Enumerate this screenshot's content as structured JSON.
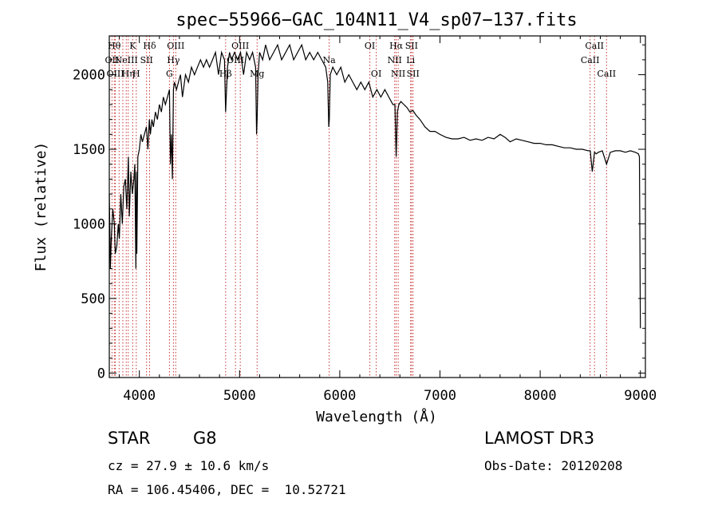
{
  "chart_data": {
    "type": "line",
    "title": "spec−55966−GAC_104N11_V4_sp07−137.fits",
    "xlabel": "Wavelength (Å)",
    "ylabel": "Flux (relative)",
    "xlim": [
      3700,
      9050
    ],
    "ylim": [
      -30,
      2260
    ],
    "xticks": [
      4000,
      5000,
      6000,
      7000,
      8000,
      9000
    ],
    "yticks": [
      0,
      500,
      1000,
      1500,
      2000
    ],
    "grid": false,
    "series": [
      {
        "name": "spectrum",
        "x": [
          3700,
          3705,
          3710,
          3720,
          3735,
          3750,
          3760,
          3775,
          3790,
          3800,
          3815,
          3830,
          3845,
          3860,
          3875,
          3890,
          3900,
          3915,
          3930,
          3945,
          3955,
          3965,
          3970,
          3975,
          3985,
          4000,
          4015,
          4030,
          4050,
          4070,
          4085,
          4100,
          4110,
          4125,
          4140,
          4160,
          4180,
          4200,
          4220,
          4240,
          4260,
          4280,
          4300,
          4310,
          4320,
          4330,
          4340,
          4350,
          4370,
          4390,
          4410,
          4430,
          4460,
          4490,
          4520,
          4550,
          4580,
          4610,
          4640,
          4670,
          4700,
          4730,
          4760,
          4790,
          4820,
          4850,
          4861,
          4880,
          4900,
          4920,
          4950,
          4980,
          5010,
          5040,
          5070,
          5100,
          5130,
          5160,
          5170,
          5175,
          5185,
          5200,
          5230,
          5260,
          5300,
          5340,
          5380,
          5420,
          5460,
          5500,
          5540,
          5580,
          5620,
          5660,
          5700,
          5740,
          5780,
          5820,
          5860,
          5880,
          5890,
          5896,
          5905,
          5930,
          5970,
          6010,
          6050,
          6090,
          6130,
          6170,
          6210,
          6250,
          6290,
          6330,
          6370,
          6410,
          6450,
          6490,
          6530,
          6550,
          6563,
          6575,
          6590,
          6610,
          6640,
          6670,
          6700,
          6730,
          6760,
          6800,
          6850,
          6900,
          6950,
          7000,
          7060,
          7120,
          7180,
          7240,
          7300,
          7360,
          7420,
          7480,
          7540,
          7600,
          7650,
          7700,
          7760,
          7820,
          7880,
          7940,
          8000,
          8060,
          8120,
          8180,
          8240,
          8300,
          8360,
          8420,
          8480,
          8500,
          8520,
          8542,
          8560,
          8580,
          8620,
          8662,
          8700,
          8750,
          8800,
          8850,
          8900,
          8950,
          8980,
          8990,
          9000
        ],
        "y": [
          1200,
          1000,
          700,
          900,
          1100,
          1000,
          800,
          850,
          1000,
          900,
          1200,
          1000,
          1250,
          1300,
          1100,
          1450,
          1050,
          1350,
          1200,
          1300,
          1400,
          700,
          1350,
          800,
          1450,
          1500,
          1600,
          1550,
          1600,
          1650,
          1500,
          1700,
          1600,
          1700,
          1650,
          1750,
          1700,
          1800,
          1750,
          1850,
          1800,
          1850,
          1900,
          1400,
          1600,
          1300,
          1900,
          1950,
          1900,
          1950,
          2000,
          1850,
          2000,
          1950,
          2050,
          2000,
          2050,
          2100,
          2050,
          2100,
          2050,
          2100,
          2150,
          2000,
          2150,
          2100,
          1750,
          2050,
          2150,
          2100,
          2150,
          2100,
          2150,
          2000,
          2150,
          2100,
          2150,
          2050,
          1600,
          1700,
          2000,
          2150,
          2100,
          2200,
          2100,
          2150,
          2200,
          2100,
          2150,
          2200,
          2100,
          2150,
          2200,
          2100,
          2150,
          2100,
          2150,
          2100,
          2050,
          1950,
          1650,
          1700,
          2000,
          2050,
          2000,
          2050,
          1950,
          2000,
          1950,
          1900,
          1950,
          1900,
          1950,
          1850,
          1900,
          1850,
          1900,
          1850,
          1800,
          1800,
          1450,
          1750,
          1800,
          1820,
          1800,
          1780,
          1750,
          1760,
          1730,
          1700,
          1650,
          1620,
          1620,
          1600,
          1580,
          1570,
          1570,
          1580,
          1560,
          1570,
          1560,
          1580,
          1570,
          1600,
          1580,
          1550,
          1570,
          1560,
          1550,
          1540,
          1540,
          1530,
          1530,
          1520,
          1510,
          1510,
          1500,
          1500,
          1490,
          1490,
          1350,
          1480,
          1470,
          1480,
          1490,
          1400,
          1480,
          1490,
          1490,
          1480,
          1490,
          1480,
          1470,
          1450,
          300
        ]
      }
    ],
    "line_markers": [
      {
        "wl": 3727,
        "row": 1,
        "label": "OII"
      },
      {
        "wl": 3750,
        "row": 0,
        "label": "Hθ"
      },
      {
        "wl": 3760,
        "row": 2,
        "label": "OIII"
      },
      {
        "wl": 3798,
        "row": 2,
        "label": ""
      },
      {
        "wl": 3835,
        "row": 0,
        "label": ""
      },
      {
        "wl": 3869,
        "row": 1,
        "label": "NeIII"
      },
      {
        "wl": 3889,
        "row": 2,
        "label": "Hη"
      },
      {
        "wl": 3934,
        "row": 0,
        "label": "K"
      },
      {
        "wl": 3969,
        "row": 2,
        "label": "H"
      },
      {
        "wl": 4072,
        "row": 1,
        "label": "SII"
      },
      {
        "wl": 4102,
        "row": 0,
        "label": "Hδ"
      },
      {
        "wl": 4300,
        "row": 2,
        "label": "G"
      },
      {
        "wl": 4340,
        "row": 1,
        "label": "Hγ"
      },
      {
        "wl": 4363,
        "row": 0,
        "label": "OIII"
      },
      {
        "wl": 4861,
        "row": 2,
        "label": "Hβ"
      },
      {
        "wl": 4959,
        "row": 1,
        "label": "OIII"
      },
      {
        "wl": 5007,
        "row": 0,
        "label": "OIII"
      },
      {
        "wl": 5175,
        "row": 2,
        "label": "Mg"
      },
      {
        "wl": 5894,
        "row": 1,
        "label": "Na"
      },
      {
        "wl": 6300,
        "row": 0,
        "label": "OI"
      },
      {
        "wl": 6364,
        "row": 2,
        "label": "OI"
      },
      {
        "wl": 6548,
        "row": 1,
        "label": "NII"
      },
      {
        "wl": 6563,
        "row": 0,
        "label": "Hα"
      },
      {
        "wl": 6583,
        "row": 2,
        "label": "NII"
      },
      {
        "wl": 6707,
        "row": 1,
        "label": "Li"
      },
      {
        "wl": 6716,
        "row": 0,
        "label": "SII"
      },
      {
        "wl": 6731,
        "row": 2,
        "label": "SII"
      },
      {
        "wl": 8498,
        "row": 1,
        "label": "CaII"
      },
      {
        "wl": 8542,
        "row": 0,
        "label": "CaII"
      },
      {
        "wl": 8662,
        "row": 2,
        "label": "CaII"
      }
    ],
    "marker_color": "#c83232"
  },
  "info": {
    "class": "STAR",
    "subclass": "G8",
    "survey": "LAMOST DR3",
    "cz": "cz = 27.9 ± 10.6 km/s",
    "obs_date": "Obs-Date: 20120208",
    "radec": "RA = 106.45406, DEC =  10.52721"
  }
}
